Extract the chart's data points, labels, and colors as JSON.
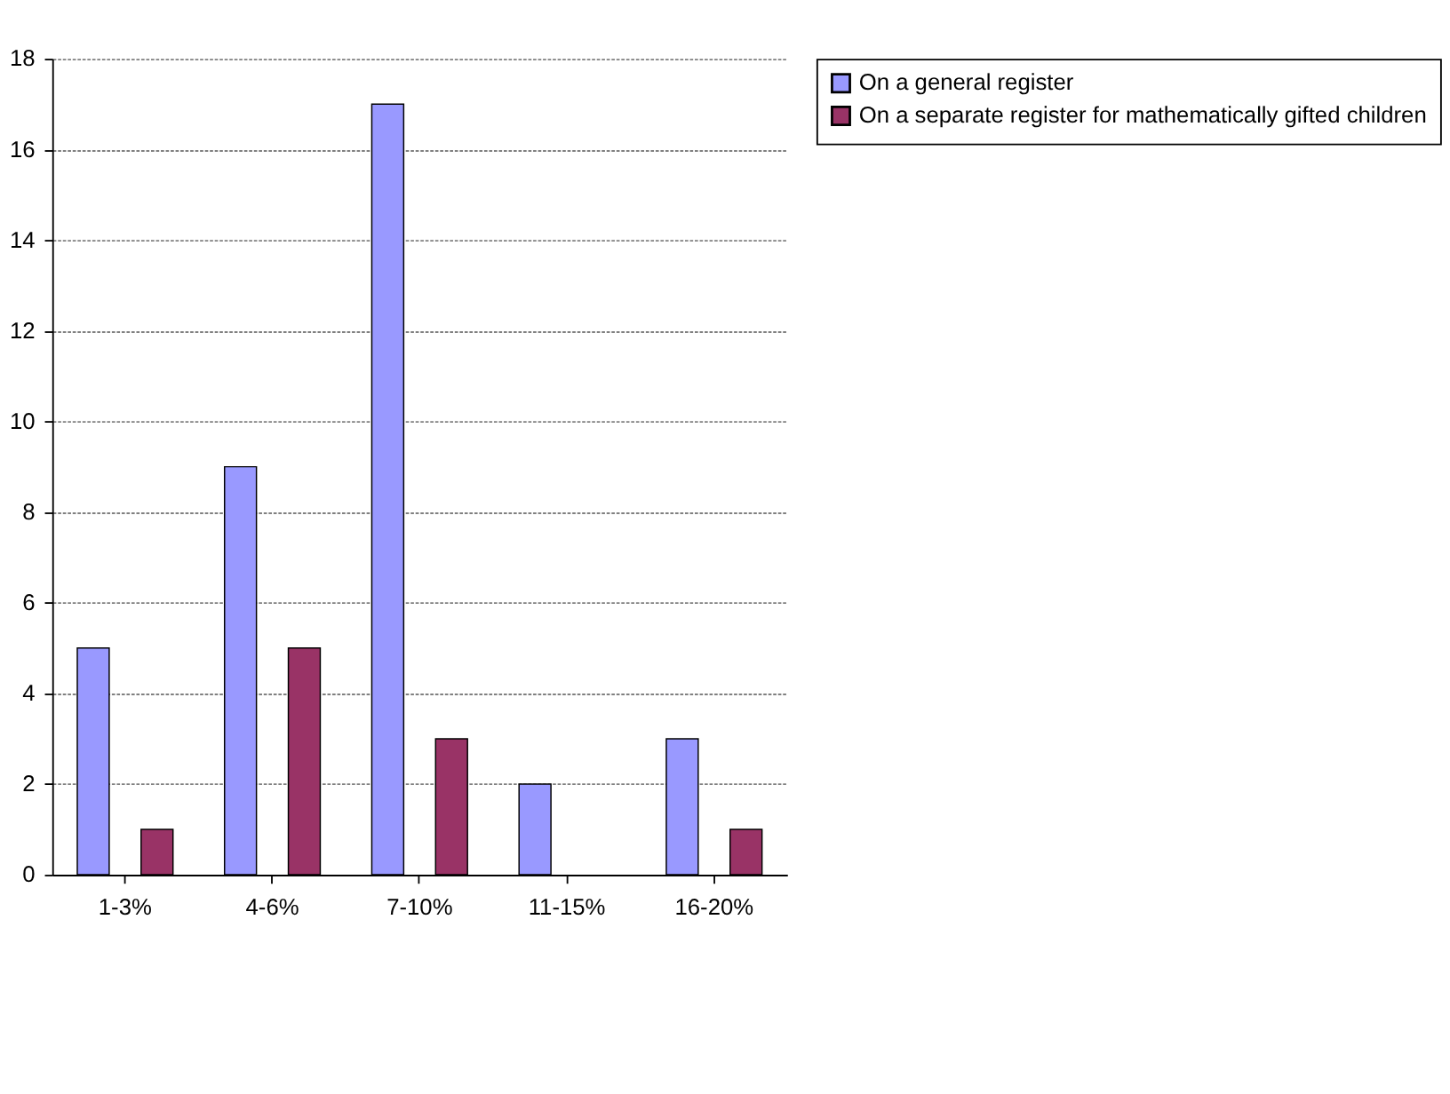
{
  "chart_data": {
    "type": "bar",
    "categories": [
      "1-3%",
      "4-6%",
      "7-10%",
      "11-15%",
      "16-20%"
    ],
    "series": [
      {
        "name": "On a general register",
        "color": "#9999ff",
        "values": [
          5,
          9,
          17,
          2,
          3
        ]
      },
      {
        "name": "On a separate register for mathematically gifted children",
        "color": "#993366",
        "values": [
          1,
          5,
          3,
          null,
          1
        ]
      }
    ],
    "ylim": [
      0,
      18
    ],
    "yticks": [
      0,
      2,
      4,
      6,
      8,
      10,
      12,
      14,
      16,
      18
    ],
    "grid": "y",
    "legend": "right"
  }
}
